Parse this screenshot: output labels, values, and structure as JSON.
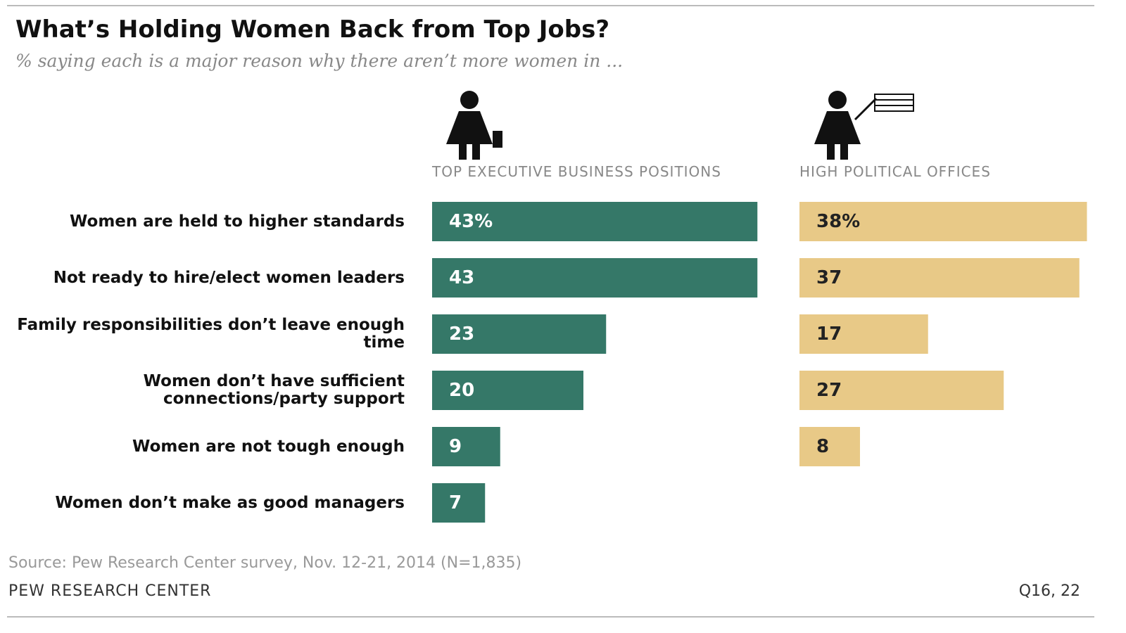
{
  "chart_data": {
    "type": "bar",
    "title": "What’s Holding Women Back from Top Jobs?",
    "subtitle": "% saying each is a major reason why there aren’t more women in ...",
    "categories": [
      "Women are held to higher standards",
      "Not ready to hire/elect women leaders",
      "Family responsibilities don’t leave enough time",
      "Women don’t have sufficient connections/party support",
      "Women are not tough enough",
      "Women don’t make as good managers"
    ],
    "series": [
      {
        "name": "TOP EXECUTIVE BUSINESS POSITIONS",
        "color": "#357868",
        "values": [
          43,
          43,
          23,
          20,
          9,
          7
        ],
        "value_labels": [
          "43%",
          "43",
          "23",
          "20",
          "9",
          "7"
        ]
      },
      {
        "name": "HIGH POLITICAL OFFICES",
        "color": "#e8c987",
        "values": [
          38,
          37,
          17,
          27,
          8,
          null
        ],
        "value_labels": [
          "38%",
          "37",
          "17",
          "27",
          "8",
          null
        ]
      }
    ],
    "source": "Source: Pew Research Center survey, Nov. 12-21, 2014 (N=1,835)",
    "credit": "PEW RESEARCH CENTER",
    "note": "Q16, 22"
  }
}
